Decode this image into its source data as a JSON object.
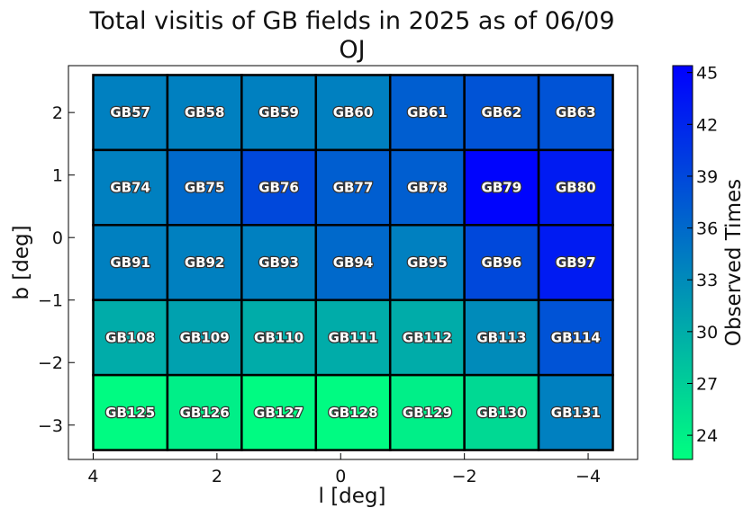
{
  "chart_data": {
    "type": "heatmap",
    "title": "Total visitis of GB fields in 2025 as of 06/09",
    "subtitle": "OJ",
    "xlabel": "l [deg]",
    "ylabel": "b [deg]",
    "x_ticks": [
      4,
      2,
      0,
      -2,
      -4
    ],
    "x_tick_labels": [
      "4",
      "2",
      "0",
      "−2",
      "−4"
    ],
    "y_ticks": [
      2,
      1,
      0,
      -1,
      -2,
      -3
    ],
    "y_tick_labels": [
      "2",
      "1",
      "0",
      "−1",
      "−2",
      "−3"
    ],
    "xlim": [
      4.4,
      -4.8
    ],
    "ylim": [
      -3.55,
      2.75
    ],
    "x_reversed": true,
    "colorbar": {
      "label": "Observed Times",
      "min": 22.6,
      "max": 45.4,
      "ticks": [
        24,
        27,
        30,
        33,
        36,
        39,
        42,
        45
      ],
      "tick_labels": [
        "24",
        "27",
        "30",
        "33",
        "36",
        "39",
        "42",
        "45"
      ],
      "colormap": "winter_r",
      "color_low": "#00ff80",
      "color_high": "#0000ff"
    },
    "cells": [
      {
        "field": "GB57",
        "l": 3.4,
        "b": 2.0,
        "value": 34
      },
      {
        "field": "GB58",
        "l": 2.2,
        "b": 2.0,
        "value": 34
      },
      {
        "field": "GB59",
        "l": 1.0,
        "b": 2.0,
        "value": 34
      },
      {
        "field": "GB60",
        "l": -0.2,
        "b": 2.0,
        "value": 34
      },
      {
        "field": "GB61",
        "l": -1.4,
        "b": 2.0,
        "value": 37
      },
      {
        "field": "GB62",
        "l": -2.6,
        "b": 2.0,
        "value": 38
      },
      {
        "field": "GB63",
        "l": -3.8,
        "b": 2.0,
        "value": 38
      },
      {
        "field": "GB74",
        "l": 3.4,
        "b": 0.8,
        "value": 34
      },
      {
        "field": "GB75",
        "l": 2.2,
        "b": 0.8,
        "value": 36
      },
      {
        "field": "GB76",
        "l": 1.0,
        "b": 0.8,
        "value": 39
      },
      {
        "field": "GB77",
        "l": -0.2,
        "b": 0.8,
        "value": 37
      },
      {
        "field": "GB78",
        "l": -1.4,
        "b": 0.8,
        "value": 37
      },
      {
        "field": "GB79",
        "l": -2.6,
        "b": 0.8,
        "value": 45
      },
      {
        "field": "GB80",
        "l": -3.8,
        "b": 0.8,
        "value": 43
      },
      {
        "field": "GB91",
        "l": 3.4,
        "b": -0.4,
        "value": 34
      },
      {
        "field": "GB92",
        "l": 2.2,
        "b": -0.4,
        "value": 34
      },
      {
        "field": "GB93",
        "l": 1.0,
        "b": -0.4,
        "value": 34
      },
      {
        "field": "GB94",
        "l": -0.2,
        "b": -0.4,
        "value": 36
      },
      {
        "field": "GB95",
        "l": -1.4,
        "b": -0.4,
        "value": 34
      },
      {
        "field": "GB96",
        "l": -2.6,
        "b": -0.4,
        "value": 39
      },
      {
        "field": "GB97",
        "l": -3.8,
        "b": -0.4,
        "value": 43
      },
      {
        "field": "GB108",
        "l": 3.4,
        "b": -1.6,
        "value": 30
      },
      {
        "field": "GB109",
        "l": 2.2,
        "b": -1.6,
        "value": 31
      },
      {
        "field": "GB110",
        "l": 1.0,
        "b": -1.6,
        "value": 30
      },
      {
        "field": "GB111",
        "l": -0.2,
        "b": -1.6,
        "value": 30
      },
      {
        "field": "GB112",
        "l": -1.4,
        "b": -1.6,
        "value": 30
      },
      {
        "field": "GB113",
        "l": -2.6,
        "b": -1.6,
        "value": 33
      },
      {
        "field": "GB114",
        "l": -3.8,
        "b": -1.6,
        "value": 38
      },
      {
        "field": "GB125",
        "l": 3.4,
        "b": -2.8,
        "value": 23
      },
      {
        "field": "GB126",
        "l": 2.2,
        "b": -2.8,
        "value": 24
      },
      {
        "field": "GB127",
        "l": 1.0,
        "b": -2.8,
        "value": 23
      },
      {
        "field": "GB128",
        "l": -0.2,
        "b": -2.8,
        "value": 23
      },
      {
        "field": "GB129",
        "l": -1.4,
        "b": -2.8,
        "value": 24
      },
      {
        "field": "GB130",
        "l": -2.6,
        "b": -2.8,
        "value": 26
      },
      {
        "field": "GB131",
        "l": -3.8,
        "b": -2.8,
        "value": 34
      }
    ]
  }
}
